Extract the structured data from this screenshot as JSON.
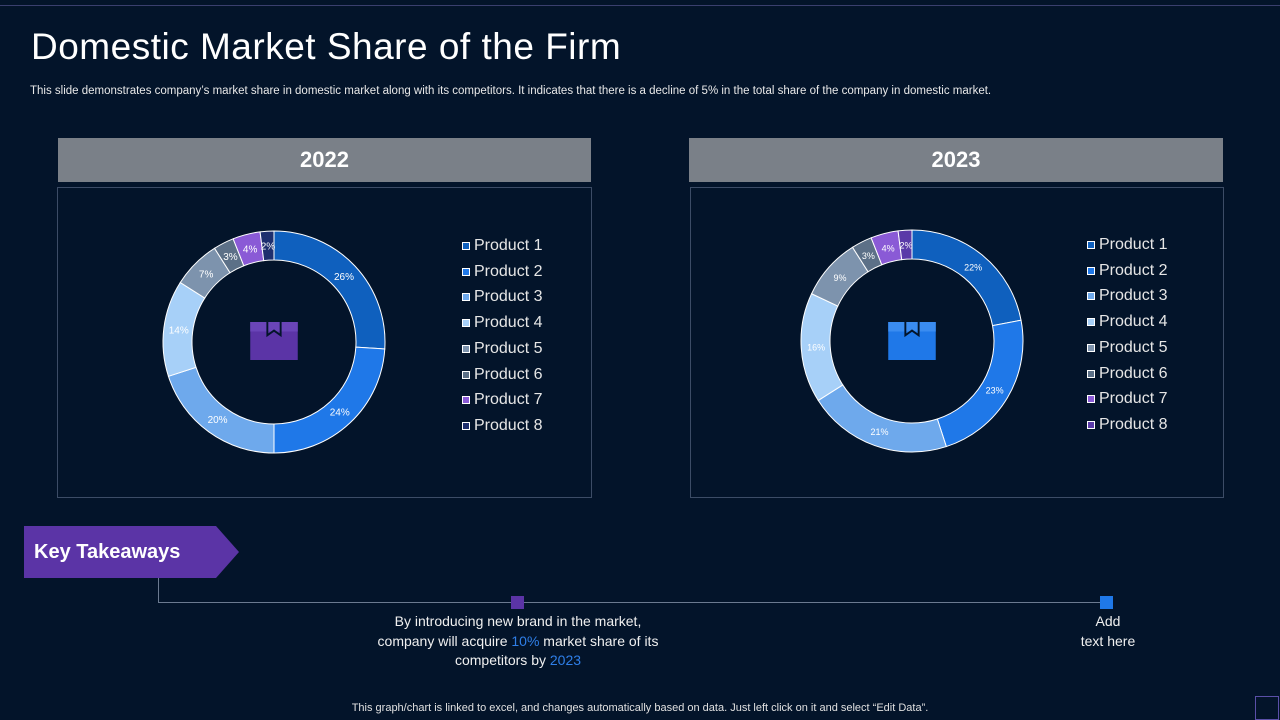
{
  "title": "Domestic Market Share of the Firm",
  "subtitle": "This slide demonstrates company’s market share in domestic market along with its competitors. It indicates that there is a decline of 5% in the total share of the company in domestic market.",
  "colors": {
    "background": "#03142a",
    "header_grey": "#7a8088",
    "accent_purple": "#5b34a6",
    "accent_blue": "#1f78e8",
    "icon_2022": "#5b34a6",
    "icon_2023": "#1f78e8"
  },
  "icons": {
    "chart_2022_center": "box-icon",
    "chart_2023_center": "box-icon"
  },
  "chart_data": [
    {
      "type": "pie",
      "variant": "donut",
      "title": "2022",
      "categories": [
        "Product 1",
        "Product 2",
        "Product 3",
        "Product 4",
        "Product 5",
        "Product 6",
        "Product 7",
        "Product 8"
      ],
      "values": [
        26,
        24,
        20,
        14,
        7,
        3,
        4,
        2
      ],
      "data_labels": [
        "26%",
        "24%",
        "20%",
        "14%",
        "7%",
        "3%",
        "4%",
        "2%"
      ],
      "colors": [
        "#0f60be",
        "#1f78e8",
        "#6ea9ec",
        "#a7d0f8",
        "#7d93ad",
        "#5c7087",
        "#8a5ad6",
        "#1e2f6e"
      ],
      "legend_position": "right"
    },
    {
      "type": "pie",
      "variant": "donut",
      "title": "2023",
      "categories": [
        "Product 1",
        "Product 2",
        "Product 3",
        "Product 4",
        "Product 5",
        "Product 6",
        "Product 7",
        "Product 8"
      ],
      "values": [
        22,
        23,
        21,
        16,
        9,
        3,
        4,
        2
      ],
      "data_labels": [
        "22%",
        "23%",
        "21%",
        "16%",
        "9%",
        "3%",
        "4%",
        "2%"
      ],
      "colors": [
        "#0f60be",
        "#1f78e8",
        "#6ea9ec",
        "#a7d0f8",
        "#7d93ad",
        "#5c7087",
        "#8a5ad6",
        "#5a3aa8"
      ],
      "legend_position": "right"
    }
  ],
  "takeaways": {
    "label": "Key Takeaways",
    "point1": {
      "line1": "By introducing new brand in the market,",
      "line2_pre": "company will acquire ",
      "line2_hl": "10%",
      "line2_post": " market share of its",
      "line3_pre": "competitors by ",
      "line3_hl": "2023"
    },
    "point2": {
      "line1": "Add",
      "line2": "text here"
    }
  },
  "footer": "This graph/chart is linked to excel,  and changes automatically based on data. Just left click on it and select “Edit Data”."
}
